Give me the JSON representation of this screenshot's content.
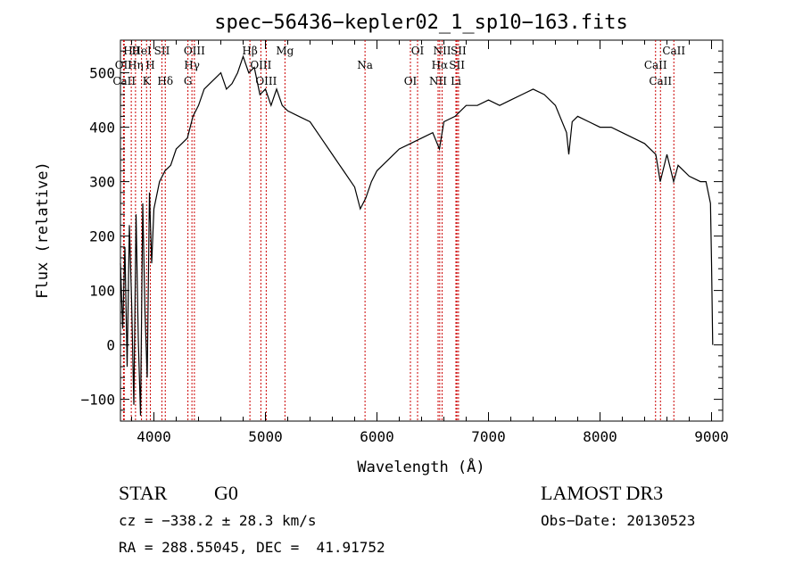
{
  "chart_data": {
    "type": "line",
    "title": "spec−56436−kepler02_1_sp10−163.fits",
    "xlabel": "Wavelength (Å)",
    "ylabel": "Flux (relative)",
    "xlim": [
      3700,
      9100
    ],
    "ylim": [
      -140,
      560
    ],
    "xticks": [
      4000,
      5000,
      6000,
      7000,
      8000,
      9000
    ],
    "xtick_labels": [
      "4000",
      "5000",
      "6000",
      "7000",
      "8000",
      "9000"
    ],
    "yticks": [
      -100,
      0,
      100,
      200,
      300,
      400,
      500
    ],
    "ytick_labels": [
      "−100",
      "0",
      "100",
      "200",
      "300",
      "400",
      "500"
    ],
    "series": [
      {
        "name": "flux",
        "x": [
          3700,
          3720,
          3740,
          3760,
          3780,
          3800,
          3820,
          3840,
          3860,
          3880,
          3900,
          3920,
          3940,
          3960,
          3980,
          4000,
          4050,
          4100,
          4150,
          4200,
          4250,
          4300,
          4350,
          4400,
          4450,
          4500,
          4550,
          4600,
          4650,
          4700,
          4750,
          4800,
          4850,
          4900,
          4950,
          5000,
          5050,
          5100,
          5150,
          5200,
          5300,
          5400,
          5500,
          5600,
          5700,
          5800,
          5850,
          5900,
          5950,
          6000,
          6100,
          6200,
          6300,
          6400,
          6500,
          6560,
          6600,
          6700,
          6800,
          6900,
          7000,
          7100,
          7200,
          7300,
          7400,
          7500,
          7600,
          7700,
          7720,
          7750,
          7800,
          7900,
          8000,
          8100,
          8200,
          8300,
          8400,
          8500,
          8540,
          8600,
          8660,
          8700,
          8800,
          8900,
          8950,
          8990,
          9000,
          9010
        ],
        "y": [
          150,
          30,
          180,
          -40,
          220,
          80,
          -110,
          240,
          10,
          -130,
          260,
          60,
          -60,
          280,
          150,
          250,
          300,
          320,
          330,
          360,
          370,
          380,
          420,
          440,
          470,
          480,
          490,
          500,
          470,
          480,
          500,
          530,
          500,
          510,
          460,
          470,
          440,
          470,
          440,
          430,
          420,
          410,
          380,
          350,
          320,
          290,
          250,
          270,
          300,
          320,
          340,
          360,
          370,
          380,
          390,
          360,
          410,
          420,
          440,
          440,
          450,
          440,
          450,
          460,
          470,
          460,
          440,
          390,
          350,
          410,
          420,
          410,
          400,
          400,
          390,
          380,
          370,
          350,
          300,
          350,
          300,
          330,
          310,
          300,
          300,
          260,
          150,
          0
        ]
      }
    ],
    "lines": [
      {
        "label": "Hθ",
        "x": 3797
      },
      {
        "label": "OII",
        "x": 3727
      },
      {
        "label": "CaII",
        "x": 3734
      },
      {
        "label": "HeI",
        "x": 3889
      },
      {
        "label": "Hη",
        "x": 3835
      },
      {
        "label": "K",
        "x": 3934
      },
      {
        "label": "SII",
        "x": 4072
      },
      {
        "label": "H",
        "x": 3968
      },
      {
        "label": "Hδ",
        "x": 4102
      },
      {
        "label": "OIII",
        "x": 4363
      },
      {
        "label": "Hγ",
        "x": 4341
      },
      {
        "label": "G",
        "x": 4305
      },
      {
        "label": "Hβ",
        "x": 4861
      },
      {
        "label": "OIII",
        "x": 4959
      },
      {
        "label": "OIII",
        "x": 5007
      },
      {
        "label": "Mg",
        "x": 5175
      },
      {
        "label": "Na",
        "x": 5893
      },
      {
        "label": "OI",
        "x": 6300
      },
      {
        "label": "OI",
        "x": 6364
      },
      {
        "label": "Hα",
        "x": 6563
      },
      {
        "label": "NII",
        "x": 6548
      },
      {
        "label": "NII",
        "x": 6584
      },
      {
        "label": "SII",
        "x": 6717
      },
      {
        "label": "Li",
        "x": 6708
      },
      {
        "label": "SII",
        "x": 6731
      },
      {
        "label": "CaII",
        "x": 8498
      },
      {
        "label": "CaII",
        "x": 8542
      },
      {
        "label": "CaII",
        "x": 8662
      }
    ]
  },
  "info": {
    "class_label": "STAR",
    "subclass": "G0",
    "survey": "LAMOST DR3",
    "cz": "cz = −338.2 ± 28.3 km/s",
    "obs_date": "Obs−Date: 20130523",
    "coords": "RA = 288.55045, DEC =  41.91752"
  },
  "colors": {
    "axis": "#000000",
    "line": "#000000",
    "marker": "#cc0000"
  }
}
